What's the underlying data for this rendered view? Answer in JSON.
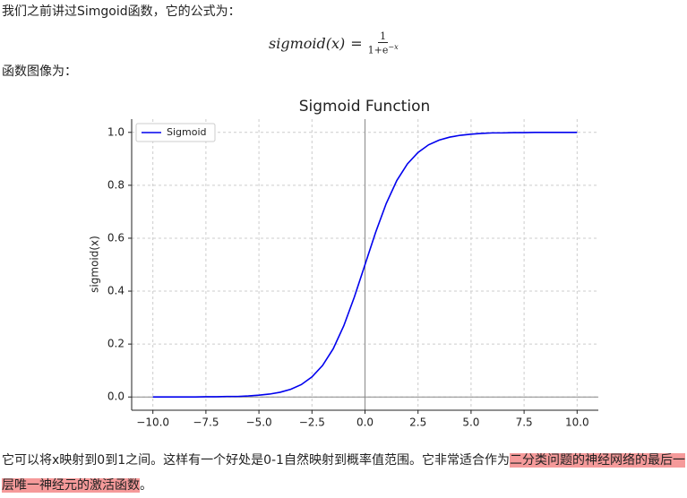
{
  "intro": "我们之前讲过Simgoid函数，它的公式为：",
  "formula": {
    "lhs": "sigmoid(x)",
    "equals": "=",
    "numerator": "1",
    "denominator_base": "1+e",
    "denominator_exponent": "−x"
  },
  "caption": "函数图像为：",
  "chart_data": {
    "type": "line",
    "title": "Sigmoid Function",
    "ylabel": "sigmoid(x)",
    "x": [
      -10,
      -9.5,
      -9,
      -8.5,
      -8,
      -7.5,
      -7,
      -6.5,
      -6,
      -5.5,
      -5,
      -4.5,
      -4,
      -3.5,
      -3,
      -2.5,
      -2,
      -1.5,
      -1,
      -0.5,
      0,
      0.5,
      1,
      1.5,
      2,
      2.5,
      3,
      3.5,
      4,
      4.5,
      5,
      5.5,
      6,
      6.5,
      7,
      7.5,
      8,
      8.5,
      9,
      9.5,
      10
    ],
    "series": [
      {
        "name": "Sigmoid",
        "color": "#0000ee",
        "values": [
          0.0,
          0.0,
          0.0,
          0.0,
          0.0,
          0.001,
          0.001,
          0.002,
          0.002,
          0.004,
          0.007,
          0.011,
          0.018,
          0.029,
          0.047,
          0.076,
          0.119,
          0.182,
          0.269,
          0.378,
          0.5,
          0.622,
          0.731,
          0.818,
          0.881,
          0.924,
          0.953,
          0.971,
          0.982,
          0.989,
          0.993,
          0.996,
          0.998,
          0.998,
          0.999,
          0.999,
          1.0,
          1.0,
          1.0,
          1.0,
          1.0
        ]
      }
    ],
    "xlim": [
      -11,
      11
    ],
    "ylim": [
      -0.05,
      1.05
    ],
    "xticks": [
      {
        "value": -10,
        "label": "−10.0"
      },
      {
        "value": -7.5,
        "label": "−7.5"
      },
      {
        "value": -5,
        "label": "−5.0"
      },
      {
        "value": -2.5,
        "label": "−2.5"
      },
      {
        "value": 0,
        "label": "0.0"
      },
      {
        "value": 2.5,
        "label": "2.5"
      },
      {
        "value": 5,
        "label": "5.0"
      },
      {
        "value": 7.5,
        "label": "7.5"
      },
      {
        "value": 10,
        "label": "10.0"
      }
    ],
    "yticks": [
      {
        "value": 0,
        "label": "0.0"
      },
      0.2,
      0.4,
      0.6,
      0.8,
      {
        "value": 1,
        "label": "1.0"
      }
    ],
    "axvline": 0,
    "axhline": 0,
    "grid": true,
    "legend": "upper left"
  },
  "conclusion": {
    "text": "它可以将x映射到0到1之间。这样有一个好处是0-1自然映射到概率值范围。它非常适合作为",
    "highlight": "二分类问题的神经网络的最后一层唯一神经元的激活函数",
    "end": "。"
  }
}
